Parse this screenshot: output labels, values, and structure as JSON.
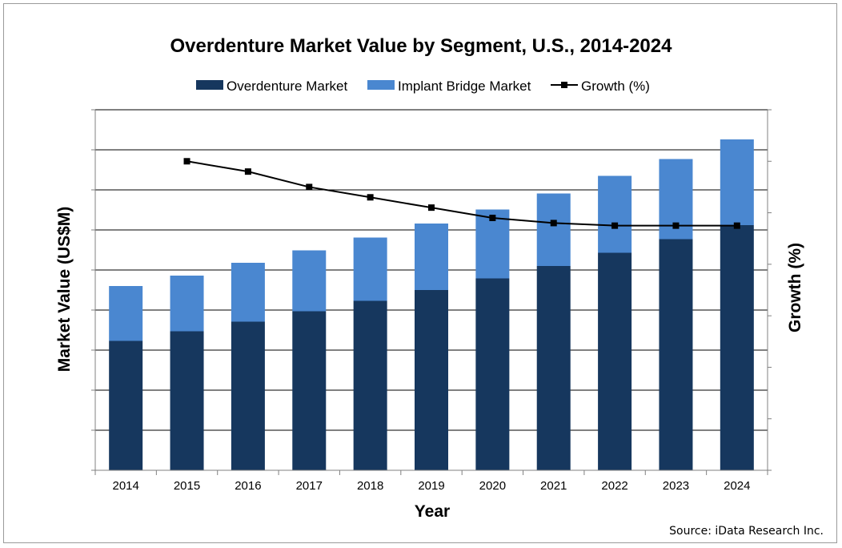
{
  "chart_data": {
    "type": "bar",
    "stacked": true,
    "title": "Overdenture Market Value by Segment, U.S., 2014-2024",
    "xlabel": "Year",
    "ylabel": "Market Value (US$M)",
    "y2label": "Growth (%)",
    "categories": [
      "2014",
      "2015",
      "2016",
      "2017",
      "2018",
      "2019",
      "2020",
      "2021",
      "2022",
      "2023",
      "2024"
    ],
    "y_ticks_shown": false,
    "y_gridlines": 9,
    "legend_position": "top",
    "series": [
      {
        "name": "Overdenture Market",
        "type": "bar",
        "color": "#16375e",
        "values": [
          3.23,
          3.47,
          3.71,
          3.97,
          4.23,
          4.5,
          4.79,
          5.1,
          5.43,
          5.77,
          6.12
        ]
      },
      {
        "name": "Implant Bridge Market",
        "type": "bar",
        "color": "#4a87d0",
        "values": [
          1.37,
          1.39,
          1.47,
          1.52,
          1.58,
          1.66,
          1.72,
          1.81,
          1.92,
          2.0,
          2.14
        ]
      },
      {
        "name": "Growth (%)",
        "type": "line",
        "axis": "secondary",
        "color": "#000000",
        "values": [
          null,
          6.0,
          5.8,
          5.5,
          5.3,
          5.1,
          4.9,
          4.8,
          4.75,
          4.75,
          4.75
        ]
      }
    ],
    "ylim": [
      0,
      9
    ],
    "y2lim": [
      0,
      7
    ]
  },
  "source": "Source: iData Research Inc."
}
